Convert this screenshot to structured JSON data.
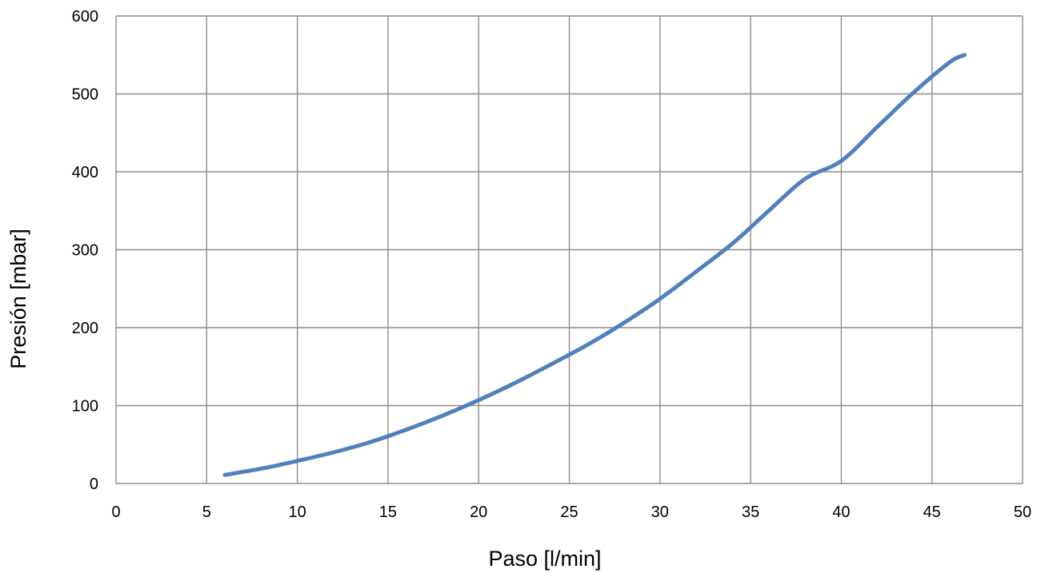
{
  "chart_data": {
    "type": "line",
    "title": "",
    "xlabel": "Paso [l/min]",
    "ylabel": "Presión [mbar]",
    "xlim": [
      0,
      50
    ],
    "ylim": [
      0,
      600
    ],
    "x_ticks": [
      0,
      5,
      10,
      15,
      20,
      25,
      30,
      35,
      40,
      45,
      50
    ],
    "y_ticks": [
      0,
      100,
      200,
      300,
      400,
      500,
      600
    ],
    "x_tick_labels": [
      "0",
      "5",
      "10",
      "15",
      "20",
      "25",
      "30",
      "35",
      "40",
      "45",
      "50"
    ],
    "y_tick_labels": [
      "0",
      "100",
      "200",
      "300",
      "400",
      "500",
      "600"
    ],
    "grid": true,
    "legend": "none",
    "series": [
      {
        "color": "#4f81bd",
        "x": [
          6,
          8,
          10,
          12,
          14,
          16,
          18,
          20,
          22,
          24,
          26,
          28,
          30,
          32,
          34,
          36,
          38,
          40,
          42,
          44,
          46,
          46.8
        ],
        "y": [
          11,
          19,
          29,
          40,
          53,
          69,
          87,
          107,
          129,
          153,
          178,
          206,
          237,
          272,
          308,
          350,
          391,
          414,
          458,
          502,
          541,
          550
        ]
      }
    ]
  }
}
